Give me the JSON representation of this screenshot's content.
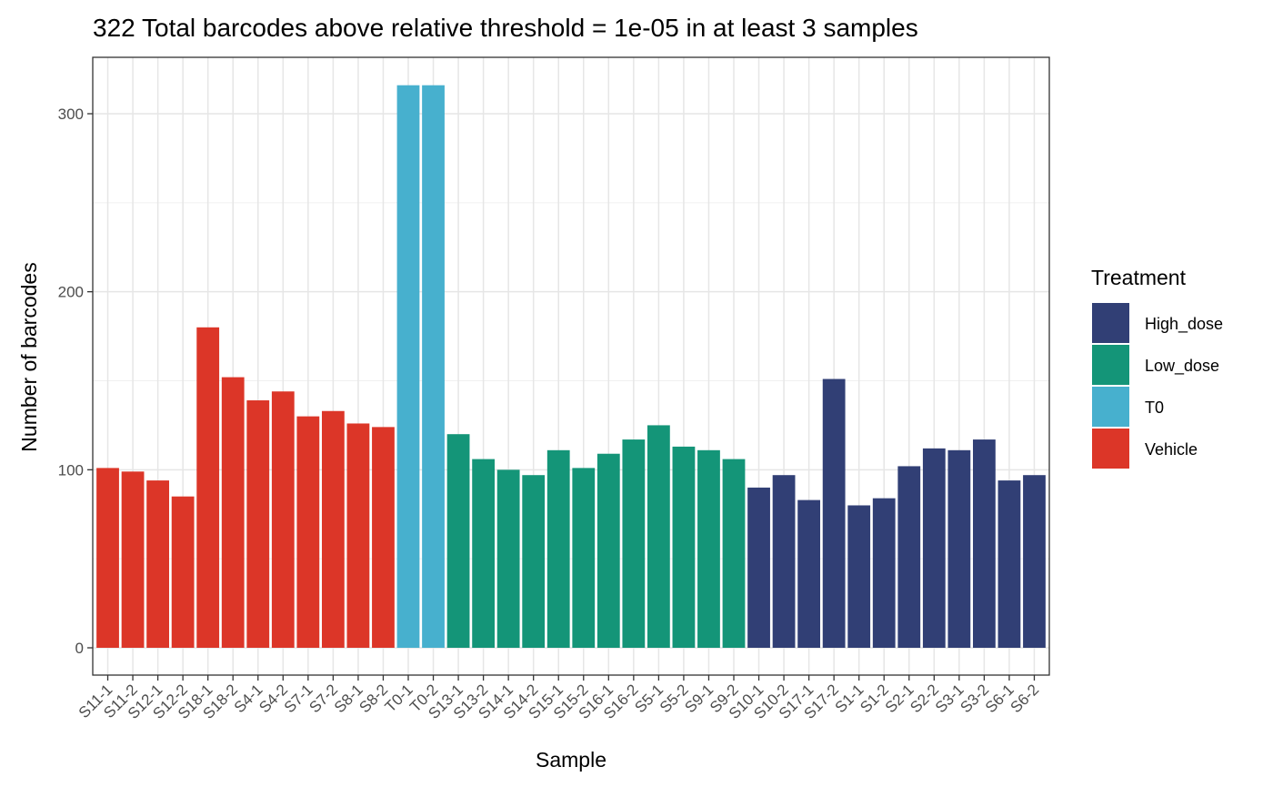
{
  "chart_data": {
    "type": "bar",
    "title": "322 Total barcodes above relative threshold = 1e-05 in at least 3 samples",
    "xlabel": "Sample",
    "ylabel": "Number of barcodes",
    "ylim": [
      0,
      320
    ],
    "yticks": [
      0,
      100,
      200,
      300
    ],
    "grid": true,
    "legend_position": "right",
    "legend": {
      "title": "Treatment",
      "entries": [
        {
          "label": "High_dose",
          "color": "#313F75"
        },
        {
          "label": "Low_dose",
          "color": "#149578"
        },
        {
          "label": "T0",
          "color": "#47B0CE"
        },
        {
          "label": "Vehicle",
          "color": "#DC3628"
        }
      ]
    },
    "categories": [
      "S11-1",
      "S11-2",
      "S12-1",
      "S12-2",
      "S18-1",
      "S18-2",
      "S4-1",
      "S4-2",
      "S7-1",
      "S7-2",
      "S8-1",
      "S8-2",
      "T0-1",
      "T0-2",
      "S13-1",
      "S13-2",
      "S14-1",
      "S14-2",
      "S15-1",
      "S15-2",
      "S16-1",
      "S16-2",
      "S5-1",
      "S5-2",
      "S9-1",
      "S9-2",
      "S10-1",
      "S10-2",
      "S17-1",
      "S17-2",
      "S1-1",
      "S1-2",
      "S2-1",
      "S2-2",
      "S3-1",
      "S3-2",
      "S6-1",
      "S6-2"
    ],
    "values": [
      101,
      99,
      94,
      85,
      180,
      152,
      139,
      144,
      130,
      133,
      126,
      124,
      316,
      316,
      120,
      106,
      100,
      97,
      111,
      101,
      109,
      117,
      125,
      113,
      111,
      106,
      90,
      97,
      83,
      151,
      80,
      84,
      102,
      112,
      111,
      117,
      94,
      97
    ],
    "groups": [
      "Vehicle",
      "Vehicle",
      "Vehicle",
      "Vehicle",
      "Vehicle",
      "Vehicle",
      "Vehicle",
      "Vehicle",
      "Vehicle",
      "Vehicle",
      "Vehicle",
      "Vehicle",
      "T0",
      "T0",
      "Low_dose",
      "Low_dose",
      "Low_dose",
      "Low_dose",
      "Low_dose",
      "Low_dose",
      "Low_dose",
      "Low_dose",
      "Low_dose",
      "Low_dose",
      "Low_dose",
      "Low_dose",
      "High_dose",
      "High_dose",
      "High_dose",
      "High_dose",
      "High_dose",
      "High_dose",
      "High_dose",
      "High_dose",
      "High_dose",
      "High_dose",
      "High_dose",
      "High_dose"
    ]
  }
}
